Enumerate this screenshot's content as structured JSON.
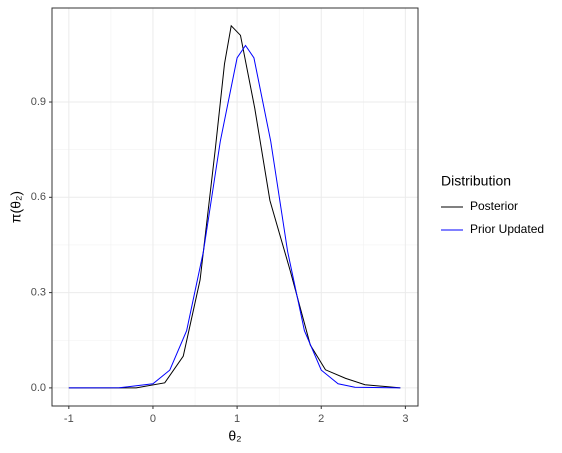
{
  "chart_data": {
    "type": "line",
    "x_label": "θ₂",
    "y_label": "π(θ₂)",
    "legend_title": "Distribution",
    "legend_position": "right",
    "grid": true,
    "xlim": [
      -1.2,
      3.15
    ],
    "ylim": [
      -0.057,
      1.196
    ],
    "xticks": [
      -1,
      0,
      1,
      2,
      3
    ],
    "yticks": [
      {
        "value": 0,
        "label": "0.0"
      },
      0.3,
      0.6,
      0.9
    ],
    "series": [
      {
        "name": "Posterior",
        "color": "#000000",
        "x": [
          -1,
          -0.2,
          0.14,
          0.36,
          0.56,
          0.74,
          0.85,
          0.93,
          1.04,
          1.21,
          1.39,
          1.63,
          1.87,
          2.05,
          2.29,
          2.52,
          2.94
        ],
        "values": [
          0,
          0,
          0.016,
          0.1,
          0.34,
          0.75,
          1.02,
          1.14,
          1.11,
          0.88,
          0.59,
          0.37,
          0.135,
          0.057,
          0.03,
          0.01,
          0
        ]
      },
      {
        "name": "Prior Updated",
        "color": "#0000ff",
        "x": [
          -1,
          -0.4,
          0,
          0.2,
          0.4,
          0.6,
          0.8,
          1.0,
          1.1,
          1.2,
          1.4,
          1.6,
          1.8,
          2.0,
          2.2,
          2.4,
          2.94
        ],
        "values": [
          0,
          0.0005,
          0.013,
          0.056,
          0.18,
          0.43,
          0.776,
          1.039,
          1.078,
          1.039,
          0.776,
          0.43,
          0.18,
          0.056,
          0.013,
          0.002,
          0
        ]
      }
    ]
  }
}
